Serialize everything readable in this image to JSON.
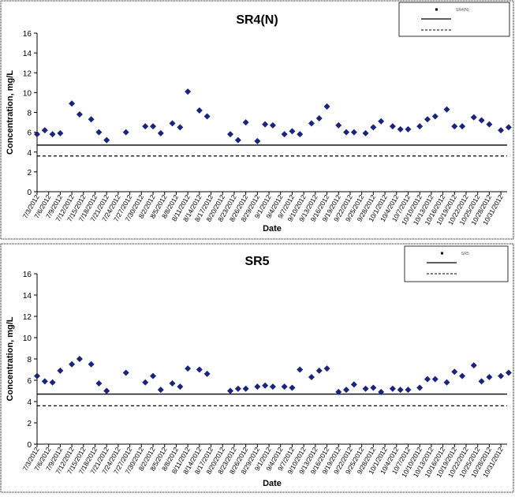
{
  "chart_data": [
    {
      "type": "scatter",
      "title": "SR4(N)",
      "xlabel": "Date",
      "ylabel": "Concentration, mg/L",
      "ylim": [
        0,
        16
      ],
      "yticks": [
        0,
        2,
        4,
        6,
        8,
        10,
        12,
        14,
        16
      ],
      "grid": false,
      "legend_position": "top-right",
      "xlim": [
        "2012-07-03",
        "2012-11-01"
      ],
      "x_tick_labels": [
        "7/3/2012",
        "7/6/2012",
        "7/9/2012",
        "7/12/2012",
        "7/15/2012",
        "7/18/2012",
        "7/21/2012",
        "7/24/2012",
        "7/27/2012",
        "7/30/2012",
        "8/2/2012",
        "8/5/2012",
        "8/8/2012",
        "8/11/2012",
        "8/14/2012",
        "8/17/2012",
        "8/20/2012",
        "8/23/2012",
        "8/26/2012",
        "8/29/2012",
        "9/1/2012",
        "9/4/2012",
        "9/7/2012",
        "9/10/2012",
        "9/13/2012",
        "9/16/2012",
        "9/19/2012",
        "9/22/2012",
        "9/25/2012",
        "9/28/2012",
        "10/1/2012",
        "10/4/2012",
        "10/7/2012",
        "10/10/2012",
        "10/13/2012",
        "10/16/2012",
        "10/19/2012",
        "10/22/2012",
        "10/25/2012",
        "10/28/2012",
        "10/31/2012"
      ],
      "points": [
        {
          "x": "2012-07-03",
          "y": 5.8
        },
        {
          "x": "2012-07-05",
          "y": 6.2
        },
        {
          "x": "2012-07-07",
          "y": 5.8
        },
        {
          "x": "2012-07-09",
          "y": 5.9
        },
        {
          "x": "2012-07-12",
          "y": 8.9
        },
        {
          "x": "2012-07-14",
          "y": 7.8
        },
        {
          "x": "2012-07-17",
          "y": 7.3
        },
        {
          "x": "2012-07-19",
          "y": 6.0
        },
        {
          "x": "2012-07-21",
          "y": 5.2
        },
        {
          "x": "2012-07-26",
          "y": 6.0
        },
        {
          "x": "2012-07-31",
          "y": 6.6
        },
        {
          "x": "2012-08-02",
          "y": 6.6
        },
        {
          "x": "2012-08-04",
          "y": 5.9
        },
        {
          "x": "2012-08-07",
          "y": 6.9
        },
        {
          "x": "2012-08-09",
          "y": 6.5
        },
        {
          "x": "2012-08-11",
          "y": 10.1
        },
        {
          "x": "2012-08-14",
          "y": 8.2
        },
        {
          "x": "2012-08-16",
          "y": 7.6
        },
        {
          "x": "2012-08-22",
          "y": 5.8
        },
        {
          "x": "2012-08-24",
          "y": 5.2
        },
        {
          "x": "2012-08-26",
          "y": 7.0
        },
        {
          "x": "2012-08-29",
          "y": 5.1
        },
        {
          "x": "2012-08-31",
          "y": 6.8
        },
        {
          "x": "2012-09-02",
          "y": 6.7
        },
        {
          "x": "2012-09-05",
          "y": 5.8
        },
        {
          "x": "2012-09-07",
          "y": 6.1
        },
        {
          "x": "2012-09-09",
          "y": 5.8
        },
        {
          "x": "2012-09-12",
          "y": 6.9
        },
        {
          "x": "2012-09-14",
          "y": 7.4
        },
        {
          "x": "2012-09-16",
          "y": 8.6
        },
        {
          "x": "2012-09-19",
          "y": 6.7
        },
        {
          "x": "2012-09-21",
          "y": 6.0
        },
        {
          "x": "2012-09-23",
          "y": 6.0
        },
        {
          "x": "2012-09-26",
          "y": 5.9
        },
        {
          "x": "2012-09-28",
          "y": 6.5
        },
        {
          "x": "2012-09-30",
          "y": 7.1
        },
        {
          "x": "2012-10-03",
          "y": 6.6
        },
        {
          "x": "2012-10-05",
          "y": 6.3
        },
        {
          "x": "2012-10-07",
          "y": 6.3
        },
        {
          "x": "2012-10-10",
          "y": 6.6
        },
        {
          "x": "2012-10-12",
          "y": 7.3
        },
        {
          "x": "2012-10-14",
          "y": 7.6
        },
        {
          "x": "2012-10-17",
          "y": 8.3
        },
        {
          "x": "2012-10-19",
          "y": 6.6
        },
        {
          "x": "2012-10-21",
          "y": 6.6
        },
        {
          "x": "2012-10-24",
          "y": 7.5
        },
        {
          "x": "2012-10-26",
          "y": 7.2
        },
        {
          "x": "2012-10-28",
          "y": 6.8
        },
        {
          "x": "2012-10-31",
          "y": 6.2
        },
        {
          "x": "2012-11-02",
          "y": 6.5
        }
      ],
      "series_color": "#1a237e",
      "ref_lines": [
        {
          "y": 4.7,
          "style": "solid"
        },
        {
          "y": 3.6,
          "style": "dashed"
        }
      ],
      "legend_entries": [
        "SR4(N)",
        "",
        ""
      ]
    },
    {
      "type": "scatter",
      "title": "SR5",
      "xlabel": "Date",
      "ylabel": "Concentration, mg/L",
      "ylim": [
        0,
        16
      ],
      "yticks": [
        0,
        2,
        4,
        6,
        8,
        10,
        12,
        14,
        16
      ],
      "grid": false,
      "legend_position": "top-right",
      "xlim": [
        "2012-07-03",
        "2012-11-01"
      ],
      "x_tick_labels": [
        "7/3/2012",
        "7/6/2012",
        "7/9/2012",
        "7/12/2012",
        "7/15/2012",
        "7/18/2012",
        "7/21/2012",
        "7/24/2012",
        "7/27/2012",
        "7/30/2012",
        "8/2/2012",
        "8/5/2012",
        "8/8/2012",
        "8/11/2012",
        "8/14/2012",
        "8/17/2012",
        "8/20/2012",
        "8/23/2012",
        "8/26/2012",
        "8/29/2012",
        "9/1/2012",
        "9/4/2012",
        "9/7/2012",
        "9/10/2012",
        "9/13/2012",
        "9/16/2012",
        "9/19/2012",
        "9/22/2012",
        "9/25/2012",
        "9/28/2012",
        "10/1/2012",
        "10/4/2012",
        "10/7/2012",
        "10/10/2012",
        "10/13/2012",
        "10/16/2012",
        "10/19/2012",
        "10/22/2012",
        "10/25/2012",
        "10/28/2012",
        "10/31/2012"
      ],
      "points": [
        {
          "x": "2012-07-03",
          "y": 6.4
        },
        {
          "x": "2012-07-05",
          "y": 5.9
        },
        {
          "x": "2012-07-07",
          "y": 5.8
        },
        {
          "x": "2012-07-09",
          "y": 6.9
        },
        {
          "x": "2012-07-12",
          "y": 7.5
        },
        {
          "x": "2012-07-14",
          "y": 8.0
        },
        {
          "x": "2012-07-17",
          "y": 7.5
        },
        {
          "x": "2012-07-19",
          "y": 5.7
        },
        {
          "x": "2012-07-21",
          "y": 5.0
        },
        {
          "x": "2012-07-26",
          "y": 6.7
        },
        {
          "x": "2012-07-31",
          "y": 5.8
        },
        {
          "x": "2012-08-02",
          "y": 6.4
        },
        {
          "x": "2012-08-04",
          "y": 5.1
        },
        {
          "x": "2012-08-07",
          "y": 5.7
        },
        {
          "x": "2012-08-09",
          "y": 5.4
        },
        {
          "x": "2012-08-11",
          "y": 7.1
        },
        {
          "x": "2012-08-14",
          "y": 7.0
        },
        {
          "x": "2012-08-16",
          "y": 6.6
        },
        {
          "x": "2012-08-22",
          "y": 5.0
        },
        {
          "x": "2012-08-24",
          "y": 5.2
        },
        {
          "x": "2012-08-26",
          "y": 5.2
        },
        {
          "x": "2012-08-29",
          "y": 5.4
        },
        {
          "x": "2012-08-31",
          "y": 5.5
        },
        {
          "x": "2012-09-02",
          "y": 5.4
        },
        {
          "x": "2012-09-05",
          "y": 5.4
        },
        {
          "x": "2012-09-07",
          "y": 5.3
        },
        {
          "x": "2012-09-09",
          "y": 7.0
        },
        {
          "x": "2012-09-12",
          "y": 6.3
        },
        {
          "x": "2012-09-14",
          "y": 6.9
        },
        {
          "x": "2012-09-16",
          "y": 7.1
        },
        {
          "x": "2012-09-19",
          "y": 4.9
        },
        {
          "x": "2012-09-21",
          "y": 5.1
        },
        {
          "x": "2012-09-23",
          "y": 5.6
        },
        {
          "x": "2012-09-26",
          "y": 5.2
        },
        {
          "x": "2012-09-28",
          "y": 5.3
        },
        {
          "x": "2012-09-30",
          "y": 4.9
        },
        {
          "x": "2012-10-03",
          "y": 5.2
        },
        {
          "x": "2012-10-05",
          "y": 5.1
        },
        {
          "x": "2012-10-07",
          "y": 5.1
        },
        {
          "x": "2012-10-10",
          "y": 5.3
        },
        {
          "x": "2012-10-12",
          "y": 6.1
        },
        {
          "x": "2012-10-14",
          "y": 6.1
        },
        {
          "x": "2012-10-17",
          "y": 5.8
        },
        {
          "x": "2012-10-19",
          "y": 6.8
        },
        {
          "x": "2012-10-21",
          "y": 6.4
        },
        {
          "x": "2012-10-24",
          "y": 7.4
        },
        {
          "x": "2012-10-26",
          "y": 5.9
        },
        {
          "x": "2012-10-28",
          "y": 6.3
        },
        {
          "x": "2012-10-31",
          "y": 6.4
        },
        {
          "x": "2012-11-02",
          "y": 6.7
        }
      ],
      "series_color": "#1a237e",
      "ref_lines": [
        {
          "y": 4.7,
          "style": "solid"
        },
        {
          "y": 3.6,
          "style": "dashed"
        }
      ],
      "legend_entries": [
        "SR5",
        "",
        ""
      ]
    }
  ]
}
